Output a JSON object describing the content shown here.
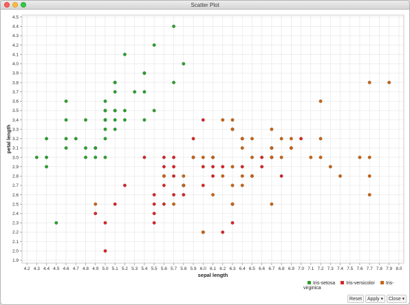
{
  "window": {
    "title": "Scatter Plot"
  },
  "toolbar": {
    "zoom_icon": "zoom-plus-icon",
    "select_icon": "select-icon",
    "menu_icon": "hamburger-menu-icon"
  },
  "buttons": {
    "reset": "Reset",
    "apply": "Apply ▾",
    "close": "Close ▾"
  },
  "colors": {
    "setosa": "#2ca02c",
    "versicolor": "#d62728",
    "virginica": "#c86414",
    "grid": "#e6e6e6"
  },
  "chart_data": {
    "type": "scatter",
    "title": "",
    "xlabel": "sepal length",
    "ylabel": "petal length",
    "xlim": [
      4.15,
      8.05
    ],
    "ylim": [
      1.87,
      4.52
    ],
    "x_ticks": [
      "4.2",
      "4.3",
      "4.4",
      "4.5",
      "4.6",
      "4.7",
      "4.8",
      "4.9",
      "5.0",
      "5.1",
      "5.2",
      "5.3",
      "5.4",
      "5.5",
      "5.6",
      "5.7",
      "5.8",
      "5.9",
      "6.0",
      "6.1",
      "6.2",
      "6.3",
      "6.4",
      "6.5",
      "6.6",
      "6.7",
      "6.8",
      "6.9",
      "7.0",
      "7.1",
      "7.2",
      "7.3",
      "7.4",
      "7.5",
      "7.6",
      "7.7",
      "7.8",
      "7.9",
      "8.0"
    ],
    "y_ticks": [
      "1.9",
      "2.0",
      "2.1",
      "2.2",
      "2.3",
      "2.4",
      "2.5",
      "2.6",
      "2.7",
      "2.8",
      "2.9",
      "3.0",
      "3.1",
      "3.2",
      "3.3",
      "3.4",
      "3.5",
      "3.6",
      "3.7",
      "3.8",
      "3.9",
      "4.0",
      "4.1",
      "4.2",
      "4.3",
      "4.4",
      "4.5"
    ],
    "grid": true,
    "legend_position": "bottom-right",
    "series": [
      {
        "name": "Iris-setosa",
        "color": "#2ca02c",
        "x": [
          4.3,
          4.4,
          4.4,
          4.4,
          4.5,
          4.6,
          4.6,
          4.6,
          4.6,
          4.7,
          4.8,
          4.8,
          4.8,
          4.9,
          4.9,
          4.9,
          5.0,
          5.0,
          5.0,
          5.0,
          5.0,
          5.0,
          5.0,
          5.0,
          5.1,
          5.1,
          5.1,
          5.1,
          5.1,
          5.1,
          5.1,
          5.2,
          5.2,
          5.2,
          5.3,
          5.4,
          5.4,
          5.4,
          5.4,
          5.5,
          5.5,
          5.7,
          5.7,
          5.8
        ],
        "y": [
          3.0,
          3.2,
          3.0,
          2.9,
          2.3,
          3.6,
          3.4,
          3.2,
          3.1,
          3.2,
          3.4,
          3.1,
          3.0,
          3.1,
          3.0,
          3.1,
          3.6,
          3.5,
          3.4,
          3.3,
          3.2,
          3.0,
          3.4,
          3.5,
          3.8,
          3.7,
          3.5,
          3.4,
          3.3,
          3.8,
          3.5,
          4.1,
          3.5,
          3.4,
          3.7,
          3.9,
          3.7,
          3.9,
          3.4,
          4.2,
          3.5,
          4.4,
          3.8,
          4.0
        ]
      },
      {
        "name": "Iris-versicolor",
        "color": "#d62728",
        "x": [
          4.9,
          5.0,
          5.0,
          5.1,
          5.2,
          5.4,
          5.5,
          5.5,
          5.5,
          5.5,
          5.6,
          5.6,
          5.6,
          5.6,
          5.6,
          5.7,
          5.7,
          5.7,
          5.7,
          5.8,
          5.8,
          5.9,
          5.9,
          6.0,
          6.0,
          6.0,
          6.0,
          6.1,
          6.1,
          6.1,
          6.2,
          6.2,
          6.3,
          6.3,
          6.3,
          6.4,
          6.4,
          6.5,
          6.6,
          6.6,
          6.7,
          6.7,
          6.8,
          6.9,
          7.0
        ],
        "y": [
          2.4,
          2.3,
          2.0,
          2.5,
          2.7,
          3.0,
          2.6,
          2.5,
          2.4,
          2.3,
          3.0,
          2.9,
          2.8,
          2.7,
          2.5,
          3.0,
          2.9,
          2.8,
          2.6,
          2.7,
          2.6,
          3.2,
          3.0,
          2.9,
          2.7,
          2.2,
          3.4,
          3.0,
          2.9,
          2.8,
          2.9,
          2.2,
          3.3,
          2.5,
          2.3,
          3.2,
          2.9,
          2.8,
          3.0,
          2.9,
          3.1,
          3.0,
          2.8,
          3.1,
          3.2
        ]
      },
      {
        "name": "Iris-virginica",
        "color": "#c86414",
        "x": [
          4.9,
          5.6,
          5.7,
          5.8,
          5.8,
          5.8,
          5.9,
          6.0,
          6.0,
          6.1,
          6.1,
          6.2,
          6.2,
          6.3,
          6.3,
          6.3,
          6.3,
          6.3,
          6.4,
          6.4,
          6.4,
          6.4,
          6.5,
          6.5,
          6.5,
          6.7,
          6.7,
          6.7,
          6.7,
          6.8,
          6.8,
          6.9,
          6.9,
          7.1,
          7.2,
          7.2,
          7.2,
          7.3,
          7.4,
          7.6,
          7.7,
          7.7,
          7.7,
          7.7,
          7.9
        ],
        "y": [
          2.5,
          2.8,
          2.5,
          2.7,
          2.8,
          2.7,
          3.0,
          3.0,
          2.2,
          3.0,
          2.6,
          3.4,
          2.8,
          3.3,
          2.9,
          2.7,
          2.5,
          3.4,
          3.2,
          3.1,
          2.8,
          2.7,
          3.2,
          3.0,
          2.8,
          3.3,
          3.1,
          3.0,
          2.5,
          3.2,
          3.0,
          3.2,
          3.1,
          3.0,
          3.6,
          3.2,
          3.0,
          2.9,
          2.8,
          3.0,
          3.8,
          3.0,
          2.8,
          2.6,
          3.8
        ]
      }
    ]
  }
}
